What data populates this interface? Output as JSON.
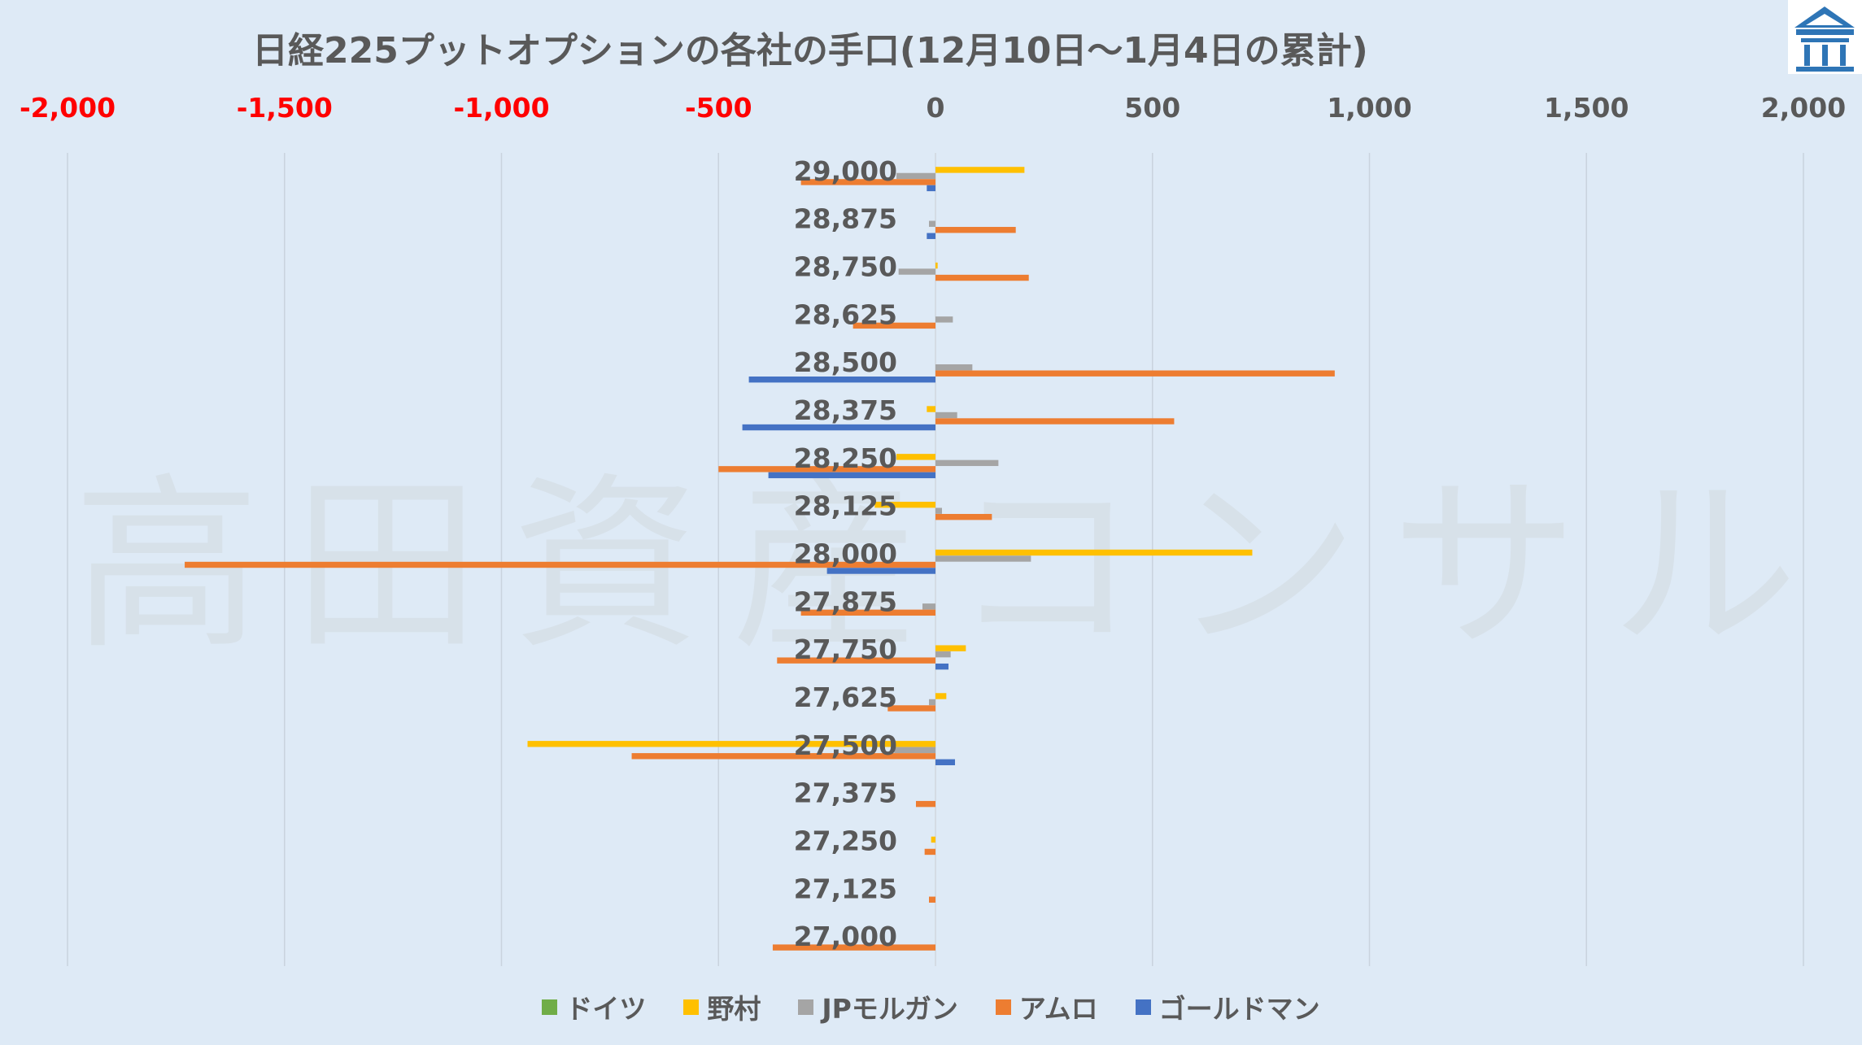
{
  "chart_data": {
    "type": "bar",
    "orientation": "horizontal",
    "title": "日経225プットオプションの各社の手口(12月10日～1月4日の累計)",
    "watermark": "高田資産コンサル",
    "xlim": [
      -2000,
      2000
    ],
    "x_ticks": [
      {
        "value": -2000,
        "label": "-2,000"
      },
      {
        "value": -1500,
        "label": "-1,500"
      },
      {
        "value": -1000,
        "label": "-1,000"
      },
      {
        "value": -500,
        "label": "-500"
      },
      {
        "value": 0,
        "label": "0"
      },
      {
        "value": 500,
        "label": "500"
      },
      {
        "value": 1000,
        "label": "1,000"
      },
      {
        "value": 1500,
        "label": "1,500"
      },
      {
        "value": 2000,
        "label": "2,000"
      }
    ],
    "negative_tick_color": "#ff0000",
    "positive_tick_color": "#595959",
    "grid": "vertical",
    "legend_position": "bottom",
    "categories": [
      "29,000",
      "28,875",
      "28,750",
      "28,625",
      "28,500",
      "28,375",
      "28,250",
      "28,125",
      "28,000",
      "27,875",
      "27,750",
      "27,625",
      "27,500",
      "27,375",
      "27,250",
      "27,125",
      "27,000"
    ],
    "series": [
      {
        "name": "ドイツ",
        "color": "#70ad47",
        "values": [
          0,
          0,
          0,
          0,
          0,
          0,
          0,
          0,
          0,
          0,
          0,
          0,
          0,
          0,
          0,
          0,
          0
        ]
      },
      {
        "name": "野村",
        "color": "#ffc000",
        "values": [
          205,
          0,
          5,
          0,
          0,
          -20,
          -90,
          -140,
          730,
          0,
          70,
          25,
          -940,
          0,
          -10,
          0,
          0
        ]
      },
      {
        "name": "JPモルガン",
        "color": "#a5a5a5",
        "values": [
          -90,
          -15,
          -85,
          40,
          85,
          50,
          145,
          15,
          220,
          -30,
          35,
          -15,
          -95,
          0,
          0,
          0,
          0
        ]
      },
      {
        "name": "アムロ",
        "color": "#ed7d31",
        "values": [
          -310,
          185,
          215,
          -190,
          920,
          550,
          -500,
          130,
          -1730,
          -310,
          -365,
          -110,
          -700,
          -45,
          -25,
          -15,
          -375
        ]
      },
      {
        "name": "ゴールドマン",
        "color": "#4472c4",
        "values": [
          -20,
          -20,
          0,
          0,
          -430,
          -445,
          -385,
          0,
          -250,
          0,
          30,
          0,
          45,
          0,
          0,
          0,
          0
        ]
      }
    ]
  },
  "logo": {
    "name": "takata-logo-icon",
    "color": "#2e75b6"
  }
}
